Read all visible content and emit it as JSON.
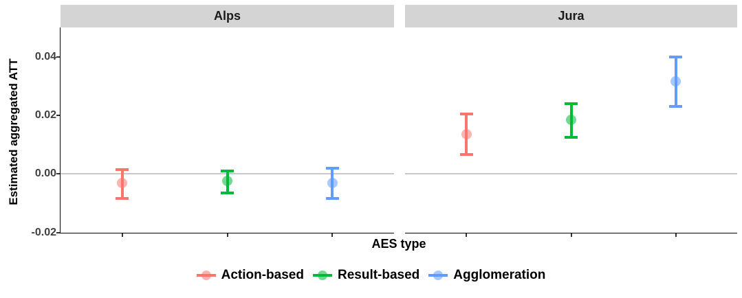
{
  "colors": {
    "action_based": "#F8766D",
    "result_based": "#00BA38",
    "agglomeration": "#619CFF",
    "strip_bg": "#D4D4D4",
    "zero_line": "#C9C9C9",
    "axis": "#000000",
    "tick_text": "#404040"
  },
  "chart_data": {
    "type": "scatter",
    "subtype": "point-with-errorbar",
    "title": "",
    "xlabel": "AES type",
    "ylabel": "Estimated aggregated ATT",
    "ylim": [
      -0.02,
      0.05
    ],
    "grid": "off",
    "zero_reference_line": 0.0,
    "y_ticks": [
      {
        "value": 0.04,
        "label": "0.04"
      },
      {
        "value": 0.02,
        "label": "0.02"
      },
      {
        "value": 0.0,
        "label": "0.00"
      },
      {
        "value": -0.02,
        "label": "-0.02"
      }
    ],
    "x_tick_labels_visible": false,
    "legend_position": "bottom",
    "panels": [
      {
        "label": "Alps",
        "points": [
          {
            "series": "Action-based",
            "est": -0.003,
            "ci_low": -0.0085,
            "ci_high": 0.0015
          },
          {
            "series": "Result-based",
            "est": -0.0025,
            "ci_low": -0.0065,
            "ci_high": 0.001
          },
          {
            "series": "Agglomeration",
            "est": -0.003,
            "ci_low": -0.0085,
            "ci_high": 0.002
          }
        ]
      },
      {
        "label": "Jura",
        "points": [
          {
            "series": "Action-based",
            "est": 0.0135,
            "ci_low": 0.0065,
            "ci_high": 0.0205
          },
          {
            "series": "Result-based",
            "est": 0.0185,
            "ci_low": 0.0125,
            "ci_high": 0.024
          },
          {
            "series": "Agglomeration",
            "est": 0.0315,
            "ci_low": 0.023,
            "ci_high": 0.04
          }
        ]
      }
    ],
    "series": [
      {
        "name": "Action-based",
        "color": "#F8766D"
      },
      {
        "name": "Result-based",
        "color": "#00BA38"
      },
      {
        "name": "Agglomeration",
        "color": "#619CFF"
      }
    ]
  }
}
